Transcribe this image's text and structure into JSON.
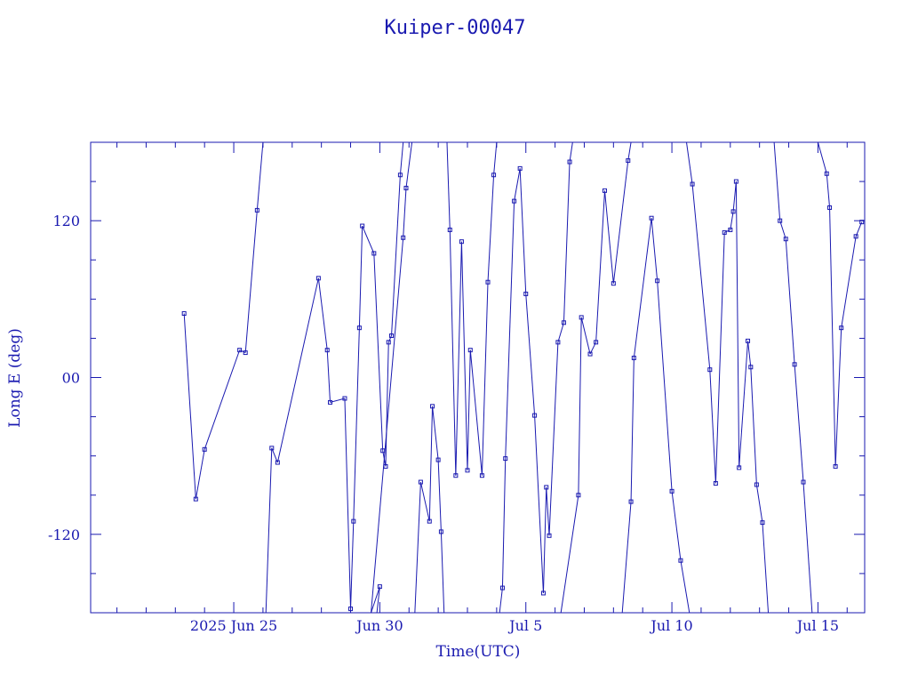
{
  "chart_data": {
    "type": "line",
    "title": "Kuiper-00047",
    "xlabel": "Time(UTC)",
    "ylabel": "Long E (deg)",
    "x_ticks": [
      {
        "day": 25,
        "label": "2025 Jun 25"
      },
      {
        "day": 30,
        "label": "Jun 30"
      },
      {
        "day": 35,
        "label": "Jul  5"
      },
      {
        "day": 40,
        "label": "Jul 10"
      },
      {
        "day": 45,
        "label": "Jul 15"
      }
    ],
    "y_ticks": [
      {
        "value": 120,
        "label": "120"
      },
      {
        "value": 0,
        "label": "00"
      },
      {
        "value": -120,
        "label": "-120"
      }
    ],
    "xlim": [
      20.1,
      46.6
    ],
    "ylim": [
      -180,
      180
    ],
    "grid": false,
    "marker": "square",
    "color": "#1a1ab0",
    "x_unit": "days since 2025 Jun 0 (UTC)",
    "points": [
      {
        "x": 23.3,
        "y": 49
      },
      {
        "x": 23.7,
        "y": -93
      },
      {
        "x": 24.0,
        "y": -55
      },
      {
        "x": 25.2,
        "y": 21
      },
      {
        "x": 25.4,
        "y": 19
      },
      {
        "x": 25.8,
        "y": 128
      },
      {
        "x": 26.0,
        "y": 180
      },
      {
        "x": 26.1,
        "y": -180
      },
      {
        "x": 26.3,
        "y": -54
      },
      {
        "x": 26.5,
        "y": -65
      },
      {
        "x": 27.9,
        "y": 76
      },
      {
        "x": 28.2,
        "y": 21
      },
      {
        "x": 28.3,
        "y": -19
      },
      {
        "x": 28.8,
        "y": -16
      },
      {
        "x": 29.0,
        "y": -177
      },
      {
        "x": 29.1,
        "y": -110
      },
      {
        "x": 29.3,
        "y": 38
      },
      {
        "x": 29.4,
        "y": 116
      },
      {
        "x": 29.8,
        "y": 95
      },
      {
        "x": 30.1,
        "y": -56
      },
      {
        "x": 30.2,
        "y": -68
      },
      {
        "x": 30.3,
        "y": 27
      },
      {
        "x": 30.4,
        "y": 32
      },
      {
        "x": 30.7,
        "y": 155
      },
      {
        "x": 30.8,
        "y": 180
      },
      {
        "x": 29.9,
        "y": -180
      },
      {
        "x": 30.0,
        "y": -160
      },
      {
        "x": 29.7,
        "y": -180
      },
      {
        "x": 30.8,
        "y": 107
      },
      {
        "x": 30.9,
        "y": 145
      },
      {
        "x": 31.1,
        "y": 180
      },
      {
        "x": 31.2,
        "y": -180
      },
      {
        "x": 31.4,
        "y": -80
      },
      {
        "x": 31.7,
        "y": -110
      },
      {
        "x": 31.8,
        "y": -22
      },
      {
        "x": 32.0,
        "y": -63
      },
      {
        "x": 32.1,
        "y": -118
      },
      {
        "x": 32.2,
        "y": -180
      },
      {
        "x": 32.3,
        "y": 180
      },
      {
        "x": 32.4,
        "y": 113
      },
      {
        "x": 32.6,
        "y": -75
      },
      {
        "x": 32.8,
        "y": 104
      },
      {
        "x": 33.0,
        "y": -71
      },
      {
        "x": 33.1,
        "y": 21
      },
      {
        "x": 33.5,
        "y": -75
      },
      {
        "x": 33.7,
        "y": 73
      },
      {
        "x": 33.9,
        "y": 155
      },
      {
        "x": 34.0,
        "y": 180
      },
      {
        "x": 34.1,
        "y": -180
      },
      {
        "x": 34.2,
        "y": -161
      },
      {
        "x": 34.3,
        "y": -62
      },
      {
        "x": 34.6,
        "y": 135
      },
      {
        "x": 34.8,
        "y": 160
      },
      {
        "x": 35.0,
        "y": 64
      },
      {
        "x": 35.3,
        "y": -29
      },
      {
        "x": 35.6,
        "y": -165
      },
      {
        "x": 35.7,
        "y": -84
      },
      {
        "x": 35.8,
        "y": -121
      },
      {
        "x": 36.1,
        "y": 27
      },
      {
        "x": 36.3,
        "y": 42
      },
      {
        "x": 36.5,
        "y": 165
      },
      {
        "x": 36.6,
        "y": 180
      },
      {
        "x": 36.2,
        "y": -180
      },
      {
        "x": 36.8,
        "y": -90
      },
      {
        "x": 36.9,
        "y": 46
      },
      {
        "x": 37.2,
        "y": 18
      },
      {
        "x": 37.4,
        "y": 27
      },
      {
        "x": 37.7,
        "y": 143
      },
      {
        "x": 38.0,
        "y": 72
      },
      {
        "x": 38.5,
        "y": 166
      },
      {
        "x": 38.6,
        "y": 180
      },
      {
        "x": 38.3,
        "y": -180
      },
      {
        "x": 38.6,
        "y": -95
      },
      {
        "x": 38.7,
        "y": 15
      },
      {
        "x": 39.3,
        "y": 122
      },
      {
        "x": 39.5,
        "y": 74
      },
      {
        "x": 40.0,
        "y": -87
      },
      {
        "x": 40.3,
        "y": -140
      },
      {
        "x": 40.6,
        "y": -180
      },
      {
        "x": 40.5,
        "y": 180
      },
      {
        "x": 40.7,
        "y": 148
      },
      {
        "x": 41.3,
        "y": 6
      },
      {
        "x": 41.5,
        "y": -81
      },
      {
        "x": 41.8,
        "y": 111
      },
      {
        "x": 42.0,
        "y": 113
      },
      {
        "x": 42.1,
        "y": 127
      },
      {
        "x": 42.2,
        "y": 150
      },
      {
        "x": 42.3,
        "y": -69
      },
      {
        "x": 42.6,
        "y": 28
      },
      {
        "x": 42.7,
        "y": 8
      },
      {
        "x": 42.9,
        "y": -82
      },
      {
        "x": 43.1,
        "y": -111
      },
      {
        "x": 43.3,
        "y": -180
      },
      {
        "x": 43.5,
        "y": 180
      },
      {
        "x": 43.7,
        "y": 120
      },
      {
        "x": 43.9,
        "y": 106
      },
      {
        "x": 44.2,
        "y": 10
      },
      {
        "x": 44.5,
        "y": -80
      },
      {
        "x": 44.8,
        "y": -180
      },
      {
        "x": 45.0,
        "y": 180
      },
      {
        "x": 45.3,
        "y": 156
      },
      {
        "x": 45.4,
        "y": 130
      },
      {
        "x": 45.6,
        "y": -68
      },
      {
        "x": 45.8,
        "y": 38
      },
      {
        "x": 46.3,
        "y": 108
      },
      {
        "x": 46.5,
        "y": 119
      }
    ]
  }
}
